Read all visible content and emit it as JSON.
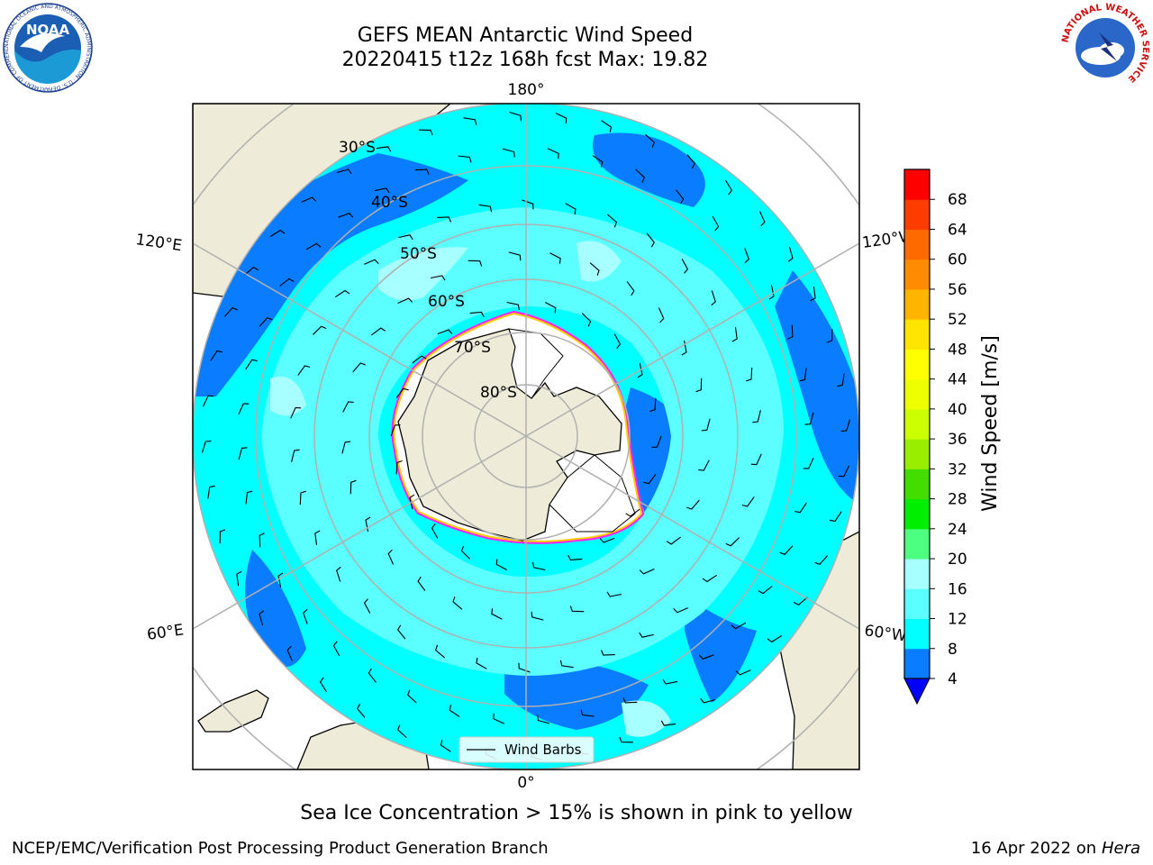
{
  "header": {
    "title_line1": "GEFS MEAN Antarctic Wind Speed",
    "title_line2": "20220415 t12z 168h fcst   Max: 19.82"
  },
  "logos": {
    "noaa_text": "NOAA",
    "noaa_ring_text": "NATIONAL OCEANIC AND ATMOSPHERIC ADMINISTRATION · U.S. DEPARTMENT OF COMMERCE",
    "nws_ring_text": "NATIONAL WEATHER SERVICE"
  },
  "map": {
    "projection": "south-polar-stereographic",
    "longitude_labels": {
      "top": "180°",
      "bottom": "0°",
      "upper_left": "120°E",
      "upper_right": "120°W",
      "lower_left": "60°E",
      "lower_right": "60°W"
    },
    "latitude_labels": [
      "30°S",
      "40°S",
      "50°S",
      "60°S",
      "70°S",
      "80°S"
    ],
    "legend_label": "Wind Barbs",
    "colors": {
      "land": "#eeecd9",
      "ice": "#ffffff",
      "ice_edge_outer": "#ff22ff",
      "ice_edge_inner": "#ffcc00",
      "speed_4_8": "#0a7cff",
      "speed_8_12": "#00ffff",
      "speed_12_16": "#5cffff",
      "speed_16_20": "#a8ffff",
      "grid": "#b0b0b0"
    }
  },
  "colorbar": {
    "label": "Wind Speed [m/s]",
    "ticks": [
      "4",
      "8",
      "12",
      "16",
      "20",
      "24",
      "28",
      "32",
      "36",
      "40",
      "44",
      "48",
      "52",
      "56",
      "60",
      "64",
      "68"
    ],
    "colors": [
      "#0a7cff",
      "#00ffff",
      "#5cffff",
      "#a8ffff",
      "#4dff80",
      "#00ee00",
      "#44dd00",
      "#99ee00",
      "#ccff00",
      "#eeff00",
      "#ffff00",
      "#ffe400",
      "#ffb400",
      "#ff8c00",
      "#ff6a00",
      "#ff3c00",
      "#ff0000"
    ],
    "underflow_color": "#0000ff"
  },
  "caption": "Sea Ice Concentration > 15% is shown in pink to yellow",
  "footer": {
    "left": "NCEP/EMC/Verification Post Processing Product Generation Branch",
    "right_date": "16 Apr 2022 on ",
    "right_machine": "Hera"
  }
}
